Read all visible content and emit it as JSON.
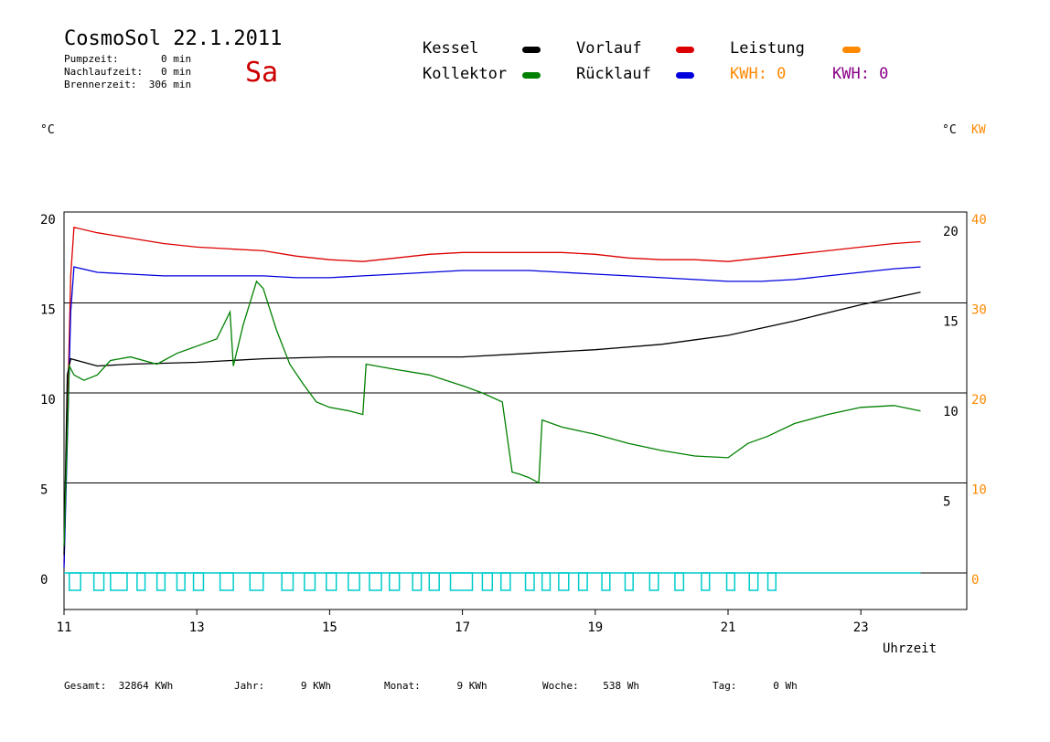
{
  "header": {
    "title": "CosmoSol 22.1.2011",
    "day": "Sa",
    "pumpzeit": "Pumpzeit:       0 min",
    "nachlaufzeit": "Nachlaufzeit:   0 min",
    "brennerzeit": "Brennerzeit:  306 min"
  },
  "legend": {
    "kessel": "Kessel",
    "kollektor": "Kollektor",
    "vorlauf": "Vorlauf",
    "ruecklauf": "Rücklauf",
    "leistung": "Leistung",
    "kwh_orange": "KWH: 0",
    "kwh_purple": "KWH: 0",
    "colors": {
      "kessel": "#000000",
      "kollektor": "#008000",
      "vorlauf": "#dd0000",
      "ruecklauf": "#0000dd",
      "leistung": "#ff8800",
      "kwh_purple": "#880088",
      "pump": "#00cccc"
    }
  },
  "footer": {
    "gesamt": "Gesamt:  32864 KWh",
    "jahr": "Jahr:      9 KWh",
    "monat": "Monat:      9 KWh",
    "woche": "Woche:    538 Wh",
    "tag": "Tag:      0 Wh"
  },
  "chart_data": {
    "type": "line",
    "xlabel": "Uhrzeit",
    "ylabel_left": "°C",
    "ylabel_right": "°C",
    "ylabel_right2": "KW",
    "xlim": [
      11,
      24.0
    ],
    "ylim": [
      -2,
      20
    ],
    "x_ticks": [
      11,
      13,
      15,
      17,
      19,
      21,
      23
    ],
    "y_ticks_left": [
      0,
      5,
      10,
      15,
      20
    ],
    "y_ticks_right": [
      5,
      10,
      15,
      20
    ],
    "y_ticks_kw": [
      0,
      10,
      20,
      30,
      40
    ],
    "grid_lines_y": [
      5,
      10,
      15
    ],
    "series": [
      {
        "name": "Vorlauf",
        "color": "#dd0000",
        "x": [
          11.0,
          11.1,
          11.15,
          11.5,
          12.0,
          12.5,
          13.0,
          13.5,
          14.0,
          14.5,
          15.0,
          15.5,
          16.0,
          16.5,
          17.0,
          17.5,
          18.0,
          18.5,
          19.0,
          19.5,
          20.0,
          20.5,
          21.0,
          21.5,
          22.0,
          22.5,
          23.0,
          23.5,
          23.9
        ],
        "y": [
          0.5,
          16.5,
          19.2,
          18.9,
          18.6,
          18.3,
          18.1,
          18.0,
          17.9,
          17.6,
          17.4,
          17.3,
          17.5,
          17.7,
          17.8,
          17.8,
          17.8,
          17.8,
          17.7,
          17.5,
          17.4,
          17.4,
          17.3,
          17.5,
          17.7,
          17.9,
          18.1,
          18.3,
          18.4
        ]
      },
      {
        "name": "Rücklauf",
        "color": "#0000dd",
        "x": [
          11.0,
          11.1,
          11.15,
          11.5,
          12.0,
          12.5,
          13.0,
          13.5,
          14.0,
          14.5,
          15.0,
          15.5,
          16.0,
          16.5,
          17.0,
          17.5,
          18.0,
          18.5,
          19.0,
          19.5,
          20.0,
          20.5,
          21.0,
          21.5,
          22.0,
          22.5,
          23.0,
          23.5,
          23.9
        ],
        "y": [
          0.3,
          14.5,
          17.0,
          16.7,
          16.6,
          16.5,
          16.5,
          16.5,
          16.5,
          16.4,
          16.4,
          16.5,
          16.6,
          16.7,
          16.8,
          16.8,
          16.8,
          16.7,
          16.6,
          16.5,
          16.4,
          16.3,
          16.2,
          16.2,
          16.3,
          16.5,
          16.7,
          16.9,
          17.0
        ]
      },
      {
        "name": "Kessel",
        "color": "#000000",
        "x": [
          11.0,
          11.05,
          11.1,
          11.5,
          12.0,
          13.0,
          14.0,
          15.0,
          16.0,
          17.0,
          18.0,
          19.0,
          20.0,
          21.0,
          22.0,
          23.0,
          23.9
        ],
        "y": [
          1.0,
          11.0,
          11.9,
          11.5,
          11.6,
          11.7,
          11.9,
          12.0,
          12.0,
          12.0,
          12.2,
          12.4,
          12.7,
          13.2,
          14.0,
          14.9,
          15.6
        ]
      },
      {
        "name": "Kollektor",
        "color": "#008000",
        "x": [
          11.0,
          11.08,
          11.15,
          11.3,
          11.5,
          11.7,
          12.0,
          12.4,
          12.7,
          13.0,
          13.3,
          13.5,
          13.55,
          13.7,
          13.9,
          14.0,
          14.2,
          14.4,
          14.6,
          14.8,
          15.0,
          15.3,
          15.5,
          15.55,
          15.7,
          16.0,
          16.5,
          17.0,
          17.3,
          17.6,
          17.75,
          17.85,
          18.0,
          18.15,
          18.2,
          18.5,
          19.0,
          19.5,
          20.0,
          20.5,
          21.0,
          21.3,
          21.6,
          22.0,
          22.5,
          23.0,
          23.5,
          23.9
        ],
        "y": [
          1.5,
          11.5,
          11.0,
          10.7,
          11.0,
          11.8,
          12.0,
          11.6,
          12.2,
          12.6,
          13.0,
          14.5,
          11.5,
          13.8,
          16.2,
          15.8,
          13.5,
          11.6,
          10.5,
          9.5,
          9.2,
          9.0,
          8.8,
          11.6,
          11.5,
          11.3,
          11.0,
          10.4,
          10.0,
          9.5,
          5.6,
          5.5,
          5.3,
          5.0,
          8.5,
          8.1,
          7.7,
          7.2,
          6.8,
          6.5,
          6.4,
          7.2,
          7.6,
          8.3,
          8.8,
          9.2,
          9.3,
          9.0
        ]
      },
      {
        "name": "Pumpe",
        "color": "#00cccc",
        "pulses": [
          [
            11.08,
            11.25
          ],
          [
            11.45,
            11.6
          ],
          [
            11.7,
            11.95
          ],
          [
            12.1,
            12.22
          ],
          [
            12.4,
            12.52
          ],
          [
            12.7,
            12.82
          ],
          [
            12.95,
            13.1
          ],
          [
            13.35,
            13.55
          ],
          [
            13.8,
            14.0
          ],
          [
            14.28,
            14.45
          ],
          [
            14.62,
            14.78
          ],
          [
            14.95,
            15.1
          ],
          [
            15.28,
            15.45
          ],
          [
            15.6,
            15.78
          ],
          [
            15.9,
            16.05
          ],
          [
            16.25,
            16.38
          ],
          [
            16.5,
            16.65
          ],
          [
            16.82,
            17.15
          ],
          [
            17.3,
            17.45
          ],
          [
            17.58,
            17.72
          ],
          [
            17.95,
            18.08
          ],
          [
            18.2,
            18.32
          ],
          [
            18.45,
            18.6
          ],
          [
            18.75,
            18.88
          ],
          [
            19.1,
            19.22
          ],
          [
            19.45,
            19.57
          ],
          [
            19.82,
            19.95
          ],
          [
            20.2,
            20.33
          ],
          [
            20.6,
            20.72
          ],
          [
            20.98,
            21.1
          ],
          [
            21.32,
            21.45
          ],
          [
            21.6,
            21.72
          ]
        ]
      }
    ]
  }
}
